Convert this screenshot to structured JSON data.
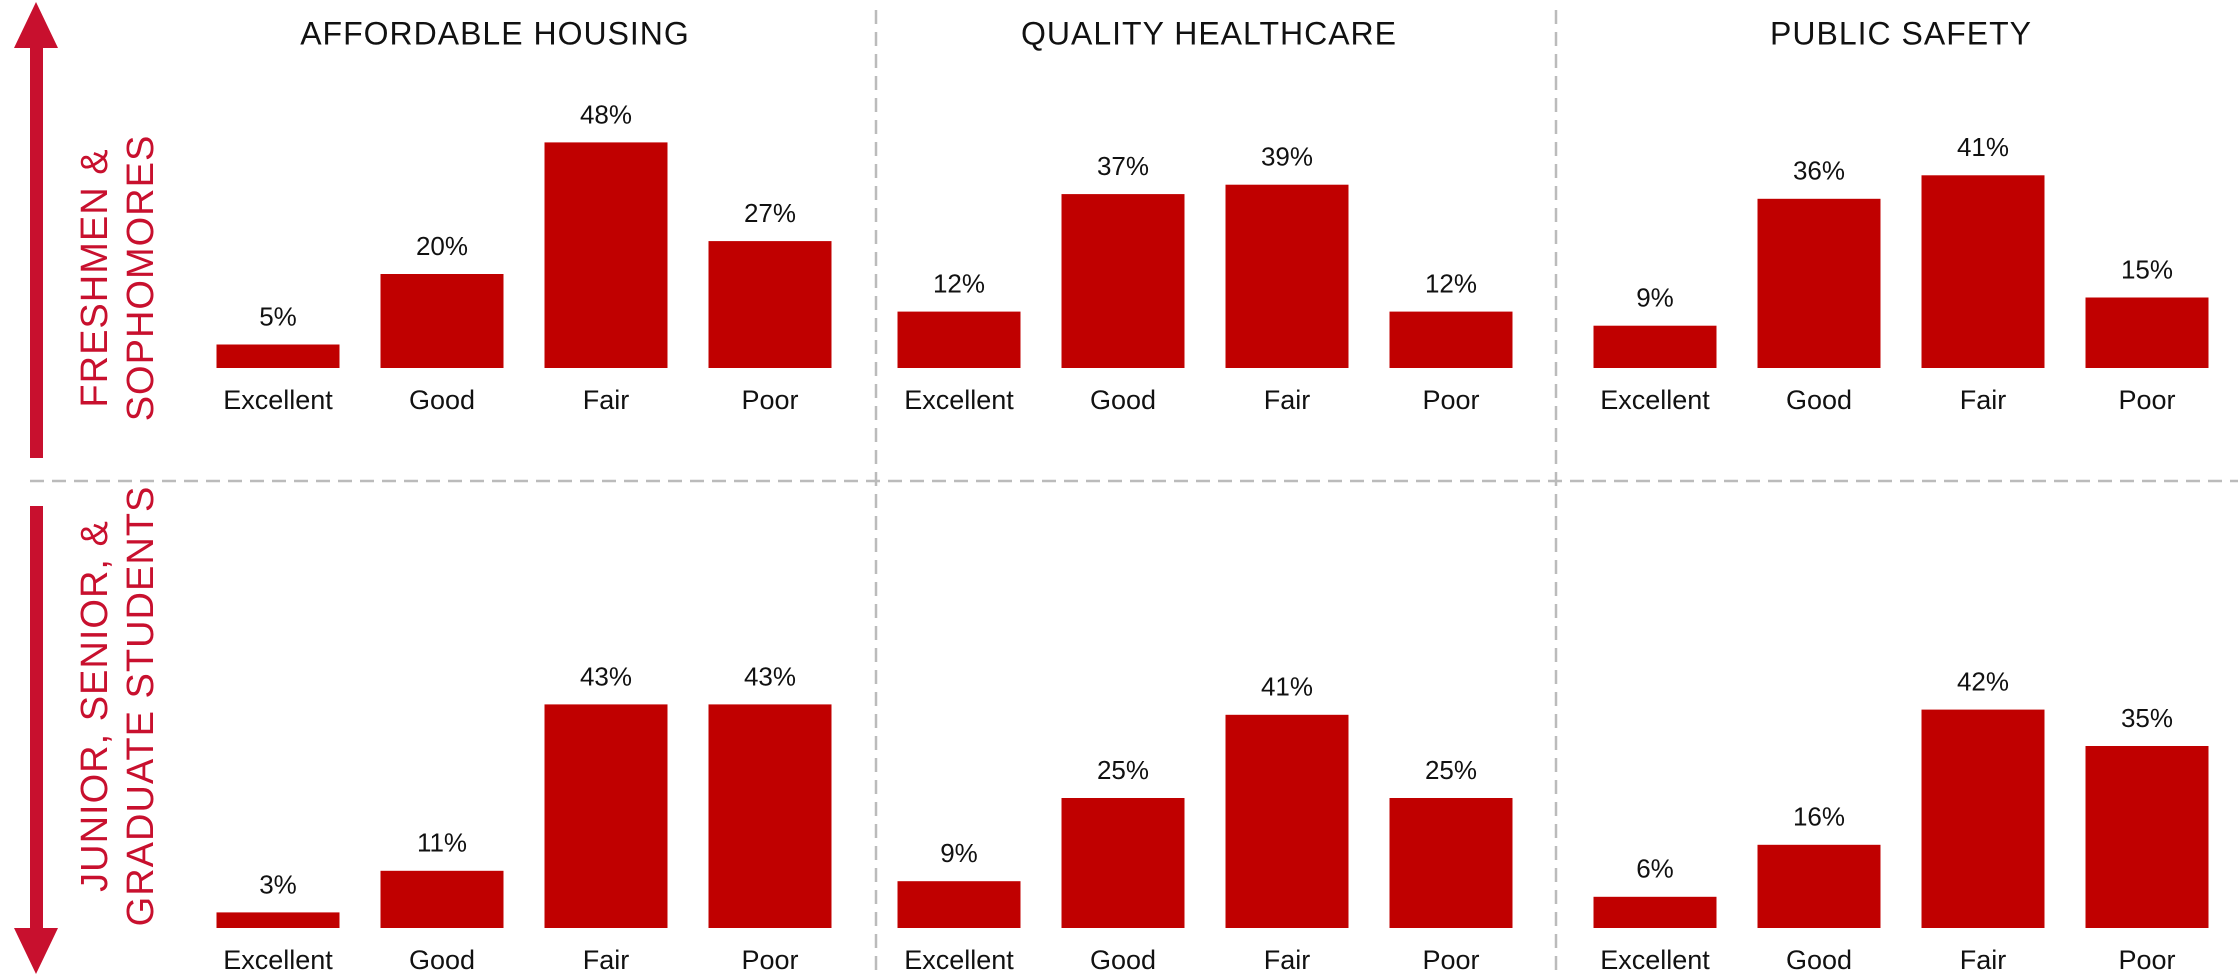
{
  "column_titles": [
    "AFFORDABLE HOUSING",
    "QUALITY HEALTHCARE",
    "PUBLIC SAFETY"
  ],
  "row_labels": [
    [
      "FRESHMEN &",
      "SOPHOMORES"
    ],
    [
      "JUNIOR, SENIOR, &",
      "GRADUATE STUDENTS"
    ]
  ],
  "chart_data": [
    {
      "type": "bar",
      "color": "#c00000",
      "categories": [
        "Excellent",
        "Good",
        "Fair",
        "Poor"
      ],
      "values": [
        5,
        20,
        48,
        27
      ],
      "value_labels": [
        "5%",
        "20%",
        "48%",
        "27%"
      ]
    },
    {
      "type": "bar",
      "color": "#c00000",
      "categories": [
        "Excellent",
        "Good",
        "Fair",
        "Poor"
      ],
      "values": [
        12,
        37,
        39,
        12
      ],
      "value_labels": [
        "12%",
        "37%",
        "39%",
        "12%"
      ]
    },
    {
      "type": "bar",
      "color": "#c00000",
      "categories": [
        "Excellent",
        "Good",
        "Fair",
        "Poor"
      ],
      "values": [
        9,
        36,
        41,
        15
      ],
      "value_labels": [
        "9%",
        "36%",
        "41%",
        "15%"
      ]
    },
    {
      "type": "bar",
      "color": "#c00000",
      "categories": [
        "Excellent",
        "Good",
        "Fair",
        "Poor"
      ],
      "values": [
        3,
        11,
        43,
        43
      ],
      "value_labels": [
        "3%",
        "11%",
        "43%",
        "43%"
      ]
    },
    {
      "type": "bar",
      "color": "#c00000",
      "categories": [
        "Excellent",
        "Good",
        "Fair",
        "Poor"
      ],
      "values": [
        9,
        25,
        41,
        25
      ],
      "value_labels": [
        "9%",
        "25%",
        "41%",
        "25%"
      ]
    },
    {
      "type": "bar",
      "color": "#c00000",
      "categories": [
        "Excellent",
        "Good",
        "Fair",
        "Poor"
      ],
      "values": [
        6,
        16,
        42,
        35
      ],
      "value_labels": [
        "6%",
        "16%",
        "42%",
        "35%"
      ]
    }
  ]
}
